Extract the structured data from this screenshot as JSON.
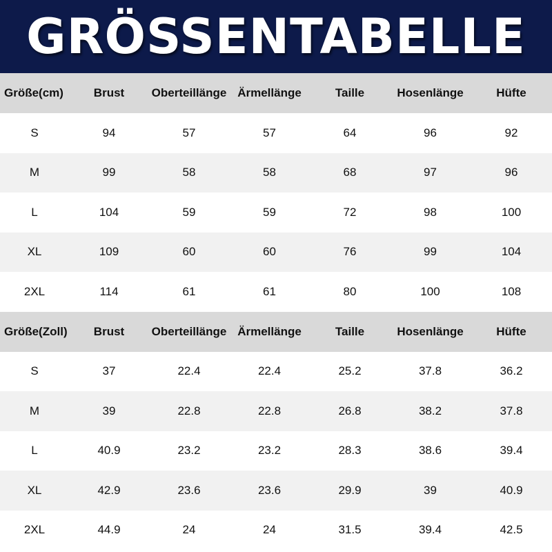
{
  "header": {
    "title": "GRÖSSENTABELLE"
  },
  "tables": [
    {
      "columns": [
        "Größe(cm)",
        "Brust",
        "Oberteillänge",
        "Ärmellänge",
        "Taille",
        "Hosenlänge",
        "Hüfte"
      ],
      "rows": [
        [
          "S",
          94,
          57,
          57,
          64,
          96,
          92
        ],
        [
          "M",
          99,
          58,
          58,
          68,
          97,
          96
        ],
        [
          "L",
          104,
          59,
          59,
          72,
          98,
          100
        ],
        [
          "XL",
          109,
          60,
          60,
          76,
          99,
          104
        ],
        [
          "2XL",
          114,
          61,
          61,
          80,
          100,
          108
        ]
      ]
    },
    {
      "columns": [
        "Größe(Zoll)",
        "Brust",
        "Oberteillänge",
        "Ärmellänge",
        "Taille",
        "Hosenlänge",
        "Hüfte"
      ],
      "rows": [
        [
          "S",
          37,
          22.4,
          22.4,
          25.2,
          37.8,
          36.2
        ],
        [
          "M",
          39,
          22.8,
          22.8,
          26.8,
          38.2,
          37.8
        ],
        [
          "L",
          40.9,
          23.2,
          23.2,
          28.3,
          38.6,
          39.4
        ],
        [
          "XL",
          42.9,
          23.6,
          23.6,
          29.9,
          39,
          40.9
        ],
        [
          "2XL",
          44.9,
          24,
          24,
          31.5,
          39.4,
          42.5
        ]
      ]
    }
  ]
}
